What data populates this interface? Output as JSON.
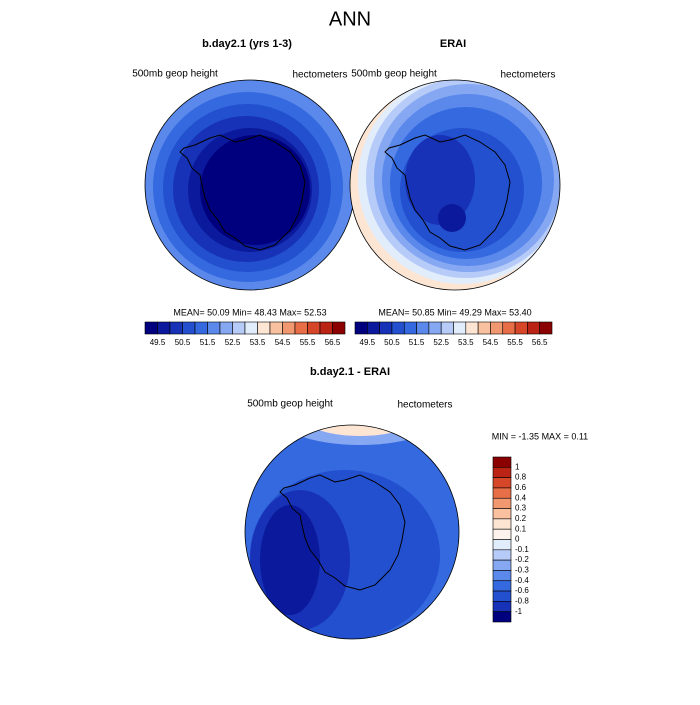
{
  "title": "ANN",
  "panels": [
    {
      "title": "b.day2.1 (yrs 1-3)",
      "left": "500mb geop height",
      "right": "hectometers",
      "stats": "MEAN=  50.09  Min=  48.43  Max=  52.53",
      "colorbar": {
        "labels": [
          49.5,
          50.5,
          51.5,
          52.5,
          53.5,
          54.5,
          55.5,
          56.5
        ],
        "colors": [
          "#00007f",
          "#0b1a9c",
          "#1732b6",
          "#2250cf",
          "#3469df",
          "#5a88eb",
          "#86a8f2",
          "#b6cbf8",
          "#e2edfc",
          "#fde5d4",
          "#f9c1a0",
          "#f29870",
          "#e86e48",
          "#d6472a",
          "#bb2414",
          "#8b0000"
        ]
      }
    },
    {
      "title": "ERAI",
      "left": "500mb geop height",
      "right": "hectometers",
      "stats": "MEAN=  50.85  Min=  49.29  Max=  53.40",
      "colorbar": {
        "labels": [
          49.5,
          50.5,
          51.5,
          52.5,
          53.5,
          54.5,
          55.5,
          56.5
        ],
        "colors": [
          "#00007f",
          "#0b1a9c",
          "#1732b6",
          "#2250cf",
          "#3469df",
          "#5a88eb",
          "#86a8f2",
          "#b6cbf8",
          "#e2edfc",
          "#fde5d4",
          "#f9c1a0",
          "#f29870",
          "#e86e48",
          "#d6472a",
          "#bb2414",
          "#8b0000"
        ]
      }
    },
    {
      "title": "b.day2.1 - ERAI",
      "left": "500mb geop height",
      "right": "hectometers",
      "stats": "MIN =  -1.35 MAX =   0.11",
      "colorbar": {
        "labels": [
          1,
          0.8,
          0.6,
          0.4,
          0.3,
          0.2,
          0.1,
          0,
          -0.1,
          -0.2,
          -0.3,
          -0.4,
          -0.6,
          -0.8,
          -1
        ],
        "colors": [
          "#8b0000",
          "#bb2414",
          "#d6472a",
          "#e86e48",
          "#f29870",
          "#f9c1a0",
          "#fde5d4",
          "#fdf3ec",
          "#e2edfc",
          "#b6cbf8",
          "#86a8f2",
          "#5a88eb",
          "#3469df",
          "#2250cf",
          "#1732b6",
          "#00007f"
        ]
      }
    }
  ]
}
